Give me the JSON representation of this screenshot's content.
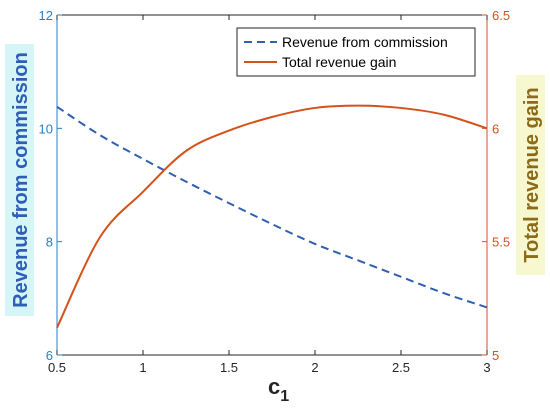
{
  "chart_data": {
    "type": "line",
    "x": [
      0.5,
      0.75,
      1.0,
      1.25,
      1.5,
      1.75,
      2.0,
      2.25,
      2.5,
      2.75,
      3.0
    ],
    "series": [
      {
        "name": "Revenue from commission",
        "axis": "left",
        "style": "dashed",
        "color": "#2f5fb3",
        "values": [
          10.38,
          9.88,
          9.46,
          9.06,
          8.68,
          8.31,
          7.96,
          7.67,
          7.38,
          7.09,
          6.84
        ]
      },
      {
        "name": "Total revenue gain",
        "axis": "right",
        "style": "solid",
        "color": "#d4521a",
        "values": [
          5.12,
          5.52,
          5.72,
          5.9,
          5.99,
          6.05,
          6.09,
          6.1,
          6.09,
          6.06,
          6.0
        ]
      }
    ],
    "xlabel": "c",
    "xlabel_sub": "1",
    "ylabel_left": "Revenue from commission",
    "ylabel_right": "Total revenue gain",
    "xlim": [
      0.5,
      3
    ],
    "ylim_left": [
      6,
      12
    ],
    "ylim_right": [
      5,
      6.5
    ],
    "xticks": [
      0.5,
      1,
      1.5,
      2,
      2.5,
      3
    ],
    "xtick_labels": [
      "0.5",
      "1",
      "1.5",
      "2",
      "2.5",
      "3"
    ],
    "yticks_left": [
      6,
      8,
      10,
      12
    ],
    "ytick_labels_left": [
      "6",
      "8",
      "10",
      "12"
    ],
    "yticks_right": [
      5,
      5.5,
      6,
      6.5
    ],
    "ytick_labels_right": [
      "5",
      "5.5",
      "6",
      "6.5"
    ],
    "grid": false,
    "legend_position": "top-right",
    "colors": {
      "left_axis": "#2a7fc1",
      "right_axis": "#d4521a",
      "left_label": "#2f5fb3",
      "right_label": "#8b6a1a",
      "left_label_bg": "#d6f5f7",
      "right_label_bg": "#f7f7d0"
    }
  }
}
